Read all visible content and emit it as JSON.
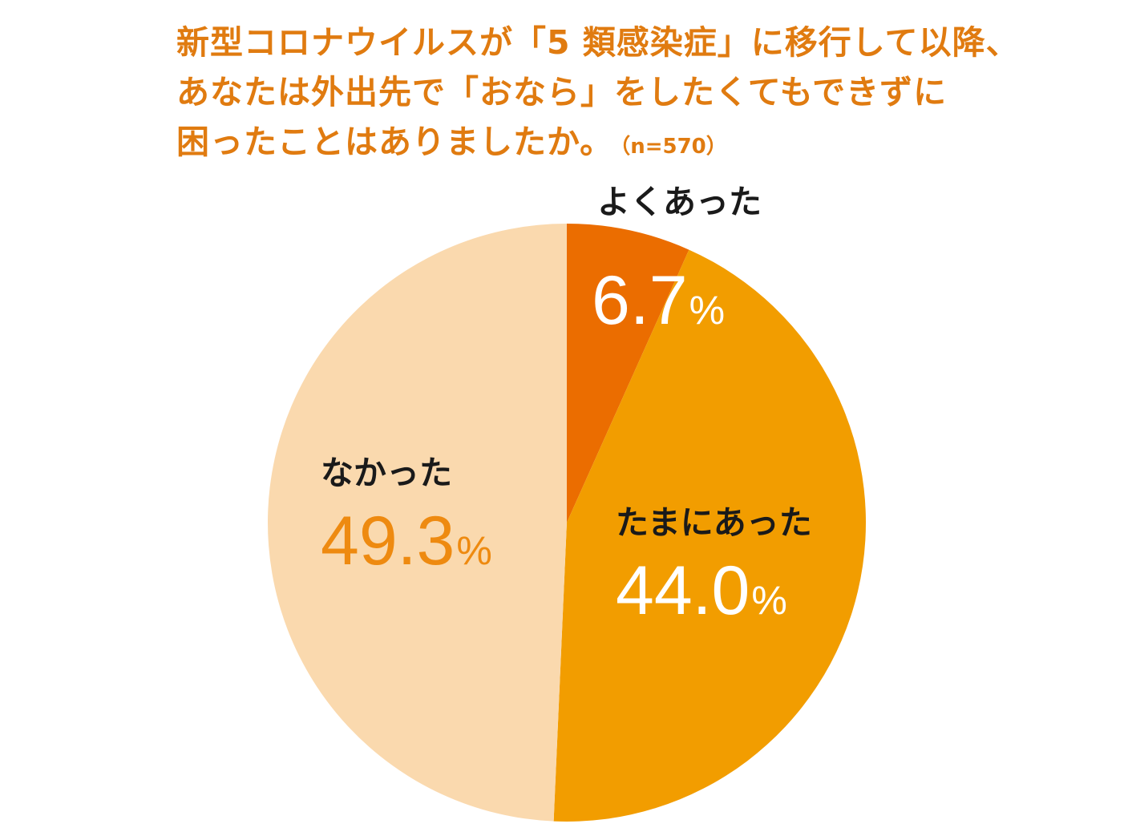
{
  "title": {
    "lines": [
      "新型コロナウイルスが「5 類感染症」に移行して以降、",
      "あなたは外出先で「おなら」をしたくてもできずに",
      "困ったことはありましたか。"
    ],
    "sample": "（n=570）"
  },
  "percent_symbol": "%",
  "colors": {
    "title": "#e07b10",
    "often": "#eb6d00",
    "sometimes": "#f29d00",
    "never": "#fad9ae",
    "never_text": "#ee8a10"
  },
  "chart_data": {
    "type": "pie",
    "title": "新型コロナウイルスが「5 類感染症」に移行して以降、あなたは外出先で「おなら」をしたくてもできずに困ったことはありましたか。",
    "n": 570,
    "start": "12 o'clock",
    "direction": "clockwise",
    "slices": [
      {
        "label": "よくあった",
        "value": 6.7,
        "display": "6.7",
        "color": "#eb6d00"
      },
      {
        "label": "たまにあった",
        "value": 44.0,
        "display": "44.0",
        "color": "#f29d00"
      },
      {
        "label": "なかった",
        "value": 49.3,
        "display": "49.3",
        "color": "#fad9ae"
      }
    ]
  }
}
